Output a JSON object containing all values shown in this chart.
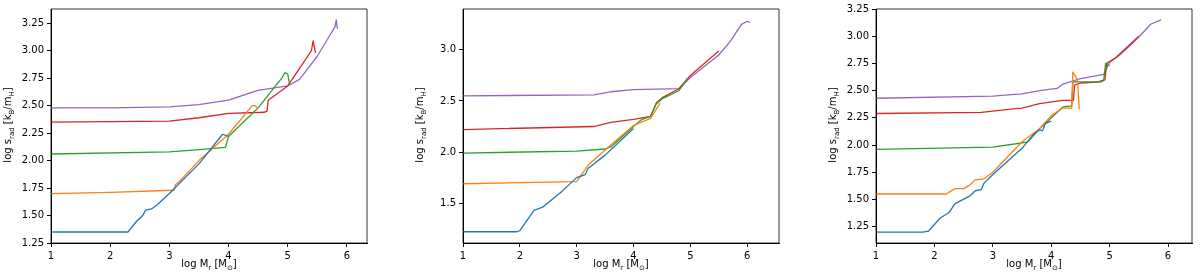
{
  "chart_data": [
    {
      "type": "line",
      "xlabel": "log M$_{r}$ [M$_{⊙}$]",
      "ylabel": "log s$_{rad}$ [k$_{B}$/m$_{H}$]",
      "xlim": [
        1,
        6.34
      ],
      "xticks": [
        1,
        2,
        3,
        4,
        5,
        6
      ],
      "ylim": [
        1.25,
        3.38
      ],
      "yticks": [
        1.25,
        {
          "value": 1.5,
          "label": "1.50"
        },
        1.75,
        {
          "value": 2,
          "label": "2.00"
        },
        2.25,
        {
          "value": 2.5,
          "label": "2.50"
        },
        2.75,
        {
          "value": 3,
          "label": "3.00"
        },
        3.25
      ],
      "series": [
        {
          "color": "#1f77b4",
          "x": [
            1,
            2.3,
            2.45,
            2.55,
            2.6,
            2.7,
            2.8,
            3,
            3.5,
            3.9,
            4.0
          ],
          "values": [
            1.35,
            1.35,
            1.45,
            1.5,
            1.55,
            1.56,
            1.6,
            1.7,
            1.97,
            2.24,
            2.22
          ]
        },
        {
          "color": "#ff7f0e",
          "x": [
            1,
            2,
            3.08,
            3.1,
            3.15,
            3.5,
            4.0,
            4.4,
            4.45,
            4.5
          ],
          "values": [
            1.7,
            1.71,
            1.73,
            1.78,
            1.8,
            2.0,
            2.24,
            2.5,
            2.5,
            2.47
          ]
        },
        {
          "color": "#2ca02c",
          "x": [
            1,
            3,
            3.5,
            3.95,
            4.0,
            4.5,
            4.9,
            4.95,
            5.0,
            5.03
          ],
          "values": [
            2.06,
            2.08,
            2.1,
            2.12,
            2.22,
            2.48,
            2.75,
            2.8,
            2.79,
            2.7
          ]
        },
        {
          "color": "#d62728",
          "x": [
            1,
            3,
            3.5,
            4,
            4.6,
            4.65,
            4.67,
            5,
            5.2,
            5.4,
            5.43,
            5.47
          ],
          "values": [
            2.35,
            2.36,
            2.39,
            2.43,
            2.44,
            2.45,
            2.55,
            2.68,
            2.84,
            3.0,
            3.09,
            2.98
          ]
        },
        {
          "color": "#9467bd",
          "x": [
            1,
            2,
            3,
            3.5,
            4,
            4.5,
            5,
            5.2,
            5.5,
            5.7,
            5.8,
            5.82,
            5.84
          ],
          "values": [
            2.48,
            2.48,
            2.49,
            2.51,
            2.55,
            2.64,
            2.68,
            2.74,
            2.95,
            3.13,
            3.22,
            3.28,
            3.2
          ]
        }
      ]
    },
    {
      "type": "line",
      "xlabel": "log M$_{r}$ [M$_{⊙}$]",
      "ylabel": "log s$_{rad}$ [k$_{B}$/m$_{H}$]",
      "xlim": [
        1,
        6.56
      ],
      "xticks": [
        1,
        2,
        3,
        4,
        5,
        6
      ],
      "ylim": [
        1.11,
        3.4
      ],
      "yticks": [
        1.5,
        {
          "value": 2,
          "label": "2.0"
        },
        2.5,
        {
          "value": 3,
          "label": "3.0"
        }
      ],
      "series": [
        {
          "color": "#1f77b4",
          "x": [
            1,
            1.95,
            2,
            2.25,
            2.4,
            2.6,
            2.75,
            3,
            3.15,
            3.2,
            3.5,
            4
          ],
          "values": [
            1.22,
            1.22,
            1.23,
            1.43,
            1.46,
            1.55,
            1.62,
            1.75,
            1.78,
            1.84,
            1.97,
            2.23
          ]
        },
        {
          "color": "#ff7f0e",
          "x": [
            1,
            3,
            3.2,
            3.6,
            4,
            4.3,
            4.47
          ],
          "values": [
            1.69,
            1.71,
            1.87,
            2.07,
            2.26,
            2.33,
            2.48
          ]
        },
        {
          "color": "#2ca02c",
          "x": [
            1,
            3,
            3.5,
            3.6,
            4,
            4.15,
            4.3,
            4.4,
            4.5,
            4.8,
            4.95
          ],
          "values": [
            1.99,
            2.01,
            2.03,
            2.05,
            2.25,
            2.32,
            2.35,
            2.47,
            2.52,
            2.6,
            2.72
          ]
        },
        {
          "color": "#d62728",
          "x": [
            1,
            3.3,
            3.6,
            4,
            4.3,
            4.4,
            4.5,
            4.8,
            5,
            5.5
          ],
          "values": [
            2.22,
            2.25,
            2.29,
            2.32,
            2.35,
            2.48,
            2.53,
            2.62,
            2.75,
            2.99
          ]
        },
        {
          "color": "#9467bd",
          "x": [
            1,
            3.3,
            3.6,
            4,
            4.8,
            5,
            5.5,
            5.7,
            5.9,
            6,
            6.05
          ],
          "values": [
            2.55,
            2.56,
            2.59,
            2.61,
            2.62,
            2.73,
            2.95,
            3.08,
            3.25,
            3.28,
            3.27
          ]
        }
      ]
    },
    {
      "type": "line",
      "xlabel": "log M$_{r}$ [M$_{⊙}$]",
      "ylabel": "log s$_{rad}$ [k$_{B}$/m$_{H}$]",
      "xlim": [
        1,
        6.41
      ],
      "xticks": [
        1,
        2,
        3,
        4,
        5,
        6
      ],
      "ylim": [
        1.1,
        3.25
      ],
      "yticks": [
        1.25,
        {
          "value": 1.5,
          "label": "1.50"
        },
        1.75,
        {
          "value": 2,
          "label": "2.00"
        },
        2.25,
        {
          "value": 2.5,
          "label": "2.50"
        },
        2.75,
        {
          "value": 3,
          "label": "3.00"
        },
        3.25
      ],
      "series": [
        {
          "color": "#1f77b4",
          "x": [
            1,
            1.8,
            1.9,
            2.1,
            2.25,
            2.35,
            2.6,
            2.7,
            2.8,
            2.85,
            3,
            3.5,
            3.7,
            3.8,
            3.85,
            3.9,
            4.0
          ],
          "values": [
            1.2,
            1.2,
            1.21,
            1.33,
            1.38,
            1.46,
            1.53,
            1.58,
            1.59,
            1.65,
            1.73,
            1.97,
            2.1,
            2.14,
            2.13,
            2.2,
            2.22
          ]
        },
        {
          "color": "#ff7f0e",
          "x": [
            1,
            2.2,
            2.35,
            2.5,
            2.6,
            2.7,
            2.85,
            3,
            3.5,
            3.8,
            4.0,
            4.2,
            4.35,
            4.37,
            4.45,
            4.48
          ],
          "values": [
            1.55,
            1.55,
            1.6,
            1.6,
            1.63,
            1.68,
            1.69,
            1.75,
            2.03,
            2.15,
            2.27,
            2.34,
            2.34,
            2.67,
            2.6,
            2.33
          ]
        },
        {
          "color": "#2ca02c",
          "x": [
            1,
            3,
            3.5,
            3.6,
            3.8,
            4.2,
            4.35,
            4.37,
            4.8,
            4.9,
            4.93,
            5
          ],
          "values": [
            1.96,
            1.98,
            2.02,
            2.03,
            2.15,
            2.35,
            2.36,
            2.58,
            2.58,
            2.6,
            2.75,
            2.73
          ]
        },
        {
          "color": "#d62728",
          "x": [
            1,
            2.8,
            3.5,
            3.8,
            4.2,
            4.38,
            4.4,
            4.5,
            4.85,
            4.92,
            4.95,
            5.1,
            5.3,
            5.5
          ],
          "values": [
            2.29,
            2.3,
            2.34,
            2.38,
            2.41,
            2.41,
            2.55,
            2.57,
            2.58,
            2.6,
            2.75,
            2.8,
            2.9,
            3.0
          ]
        },
        {
          "color": "#9467bd",
          "x": [
            1,
            3,
            3.5,
            3.8,
            4.1,
            4.2,
            4.5,
            4.9,
            5,
            5.2,
            5.4,
            5.6,
            5.7,
            5.88
          ],
          "values": [
            2.43,
            2.45,
            2.47,
            2.5,
            2.52,
            2.56,
            2.61,
            2.65,
            2.76,
            2.84,
            2.94,
            3.05,
            3.11,
            3.15
          ]
        }
      ]
    }
  ]
}
